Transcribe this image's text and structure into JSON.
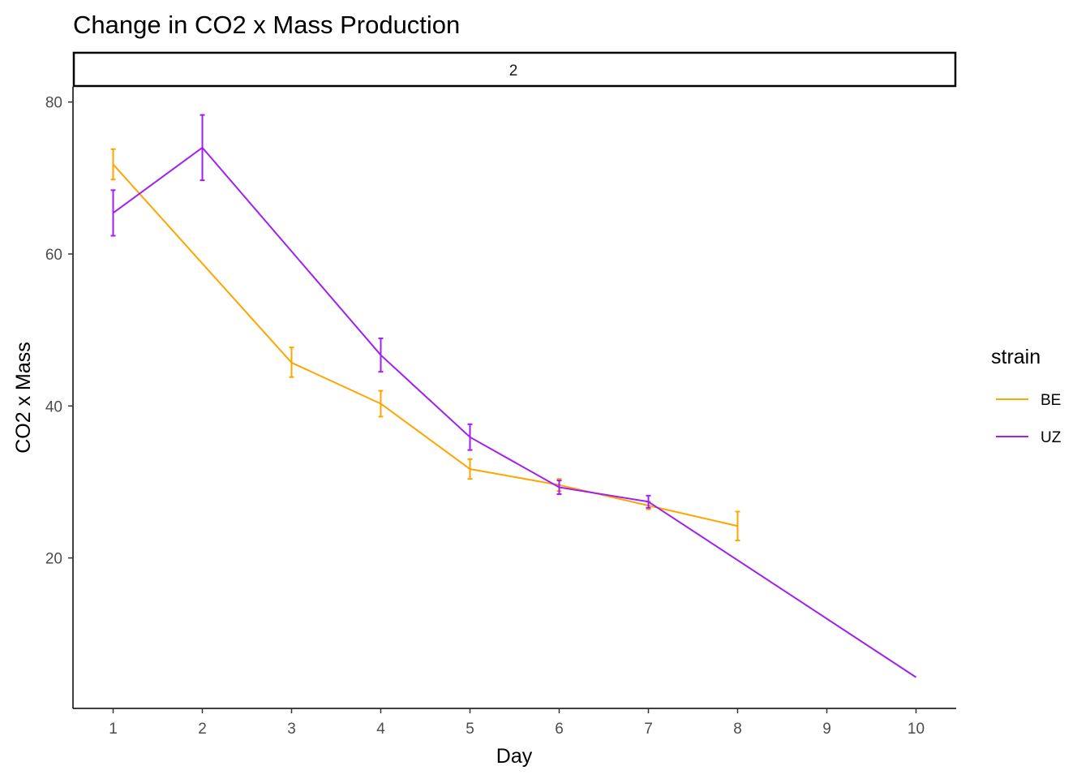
{
  "chart_data": {
    "type": "line",
    "title": "Change in CO2 x Mass Production",
    "facet_label": "2",
    "xlabel": "Day",
    "ylabel": "CO2 x Mass",
    "x_ticks": [
      1,
      2,
      3,
      4,
      5,
      6,
      7,
      8,
      9,
      10
    ],
    "y_ticks": [
      20,
      40,
      60,
      80
    ],
    "xlim": [
      0.55,
      10.45
    ],
    "ylim": [
      0.2,
      82
    ],
    "grid": false,
    "legend": {
      "title": "strain",
      "position": "right"
    },
    "error_bars": true,
    "series": [
      {
        "name": "BE",
        "color": "#FFA500",
        "points": [
          {
            "x": 1,
            "y": 71.8,
            "lo": 69.8,
            "hi": 73.8
          },
          {
            "x": 3,
            "y": 45.7,
            "lo": 43.8,
            "hi": 47.7
          },
          {
            "x": 4,
            "y": 40.3,
            "lo": 38.6,
            "hi": 42.0
          },
          {
            "x": 5,
            "y": 31.7,
            "lo": 30.4,
            "hi": 33.0
          },
          {
            "x": 6,
            "y": 29.6,
            "lo": 28.8,
            "hi": 30.4
          },
          {
            "x": 7,
            "y": 26.9,
            "lo": 26.4,
            "hi": 27.4
          },
          {
            "x": 8,
            "y": 24.2,
            "lo": 22.3,
            "hi": 26.1
          }
        ]
      },
      {
        "name": "UZ",
        "color": "#A020F0",
        "points": [
          {
            "x": 1,
            "y": 65.4,
            "lo": 62.4,
            "hi": 68.4
          },
          {
            "x": 2,
            "y": 74.0,
            "lo": 69.7,
            "hi": 78.3
          },
          {
            "x": 4,
            "y": 46.7,
            "lo": 44.5,
            "hi": 48.9
          },
          {
            "x": 5,
            "y": 35.9,
            "lo": 34.2,
            "hi": 37.6
          },
          {
            "x": 6,
            "y": 29.3,
            "lo": 28.4,
            "hi": 30.2
          },
          {
            "x": 7,
            "y": 27.4,
            "lo": 26.6,
            "hi": 28.2
          },
          {
            "x": 10,
            "y": 4.3
          }
        ]
      }
    ]
  }
}
